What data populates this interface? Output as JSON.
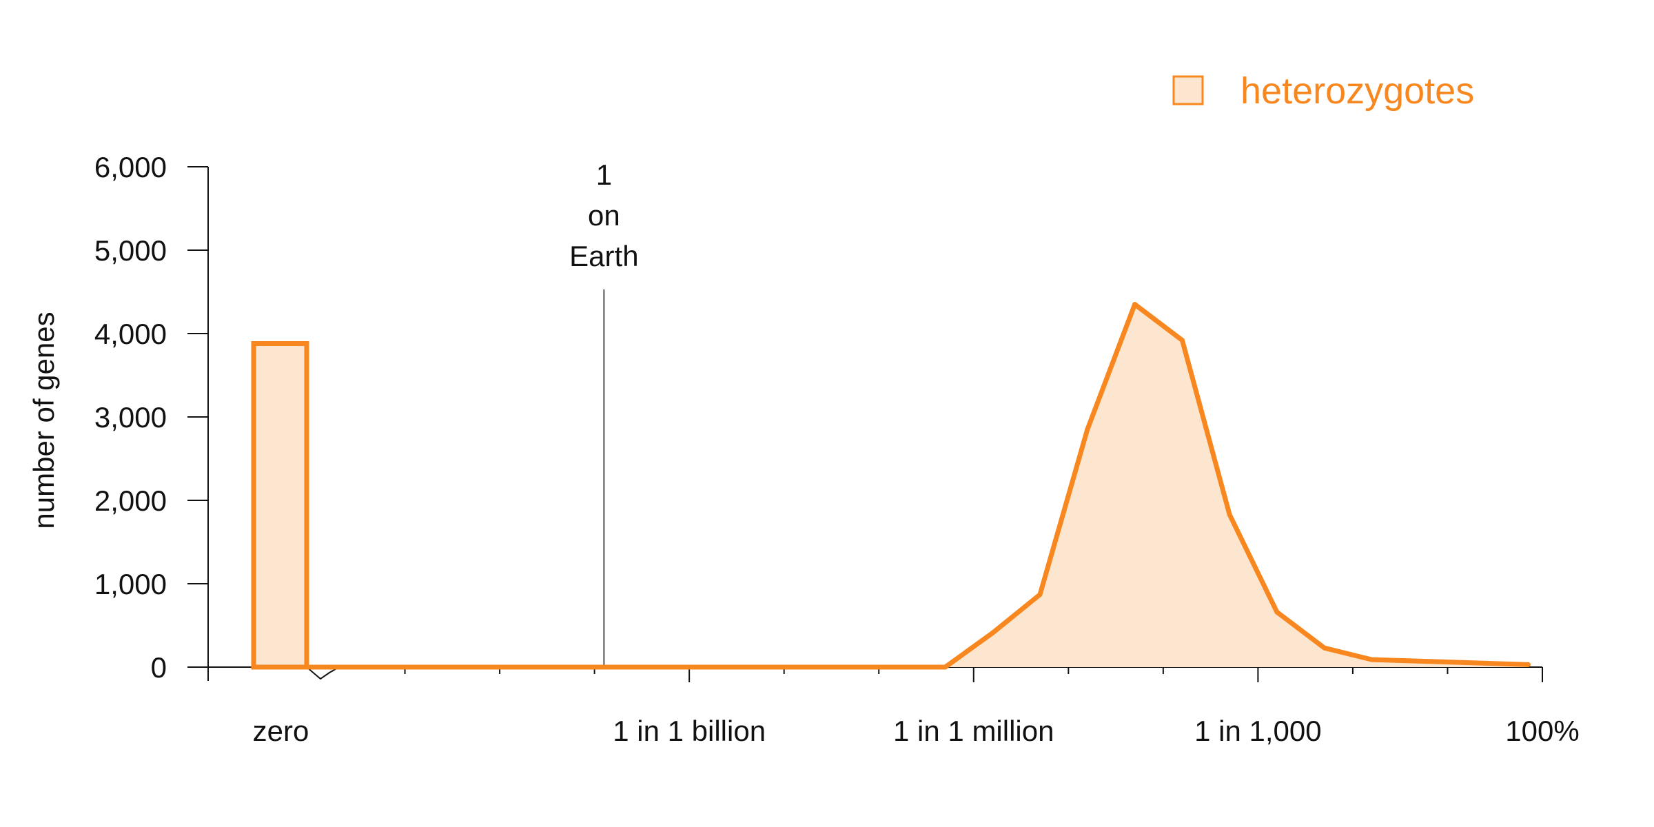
{
  "chart_data": {
    "type": "area",
    "xlabel": "",
    "ylabel": "number of genes",
    "ylim": [
      0,
      6000
    ],
    "y_ticks": [
      {
        "value": 0,
        "label": "0"
      },
      {
        "value": 1000,
        "label": "1,000"
      },
      {
        "value": 2000,
        "label": "2,000"
      },
      {
        "value": 3000,
        "label": "3,000"
      },
      {
        "value": 4000,
        "label": "4,000"
      },
      {
        "value": 5000,
        "label": "5,000"
      },
      {
        "value": 6000,
        "label": "6,000"
      }
    ],
    "x_scale": "log10 of heterozygote frequency, plus a separate 'zero' bin",
    "xlim_log10": [
      -13,
      0
    ],
    "x_ticks": [
      {
        "log10": -9,
        "label": "1 in 1 billion"
      },
      {
        "log10": -6,
        "label": "1 in 1 million"
      },
      {
        "log10": -3,
        "label": "1 in 1,000"
      },
      {
        "log10": 0,
        "label": "100%"
      }
    ],
    "x_minor_ticks_log10": [
      -12,
      -11,
      -10,
      -8,
      -7,
      -5,
      -4,
      -2,
      -1
    ],
    "zero_bin": {
      "label": "zero",
      "value": 3880
    },
    "reference_line": {
      "log10": -9.9,
      "label_lines": [
        "1",
        "on",
        "Earth"
      ]
    },
    "series": [
      {
        "name": "heterozygotes",
        "color": "#F7871E",
        "fill": "#FDE6CF",
        "points": [
          {
            "log10": -13.0,
            "value": 0
          },
          {
            "log10": -6.3,
            "value": 0
          },
          {
            "log10": -5.8,
            "value": 410
          },
          {
            "log10": -5.3,
            "value": 870
          },
          {
            "log10": -4.8,
            "value": 2850
          },
          {
            "log10": -4.3,
            "value": 4350
          },
          {
            "log10": -3.8,
            "value": 3920
          },
          {
            "log10": -3.3,
            "value": 1830
          },
          {
            "log10": -2.8,
            "value": 660
          },
          {
            "log10": -2.3,
            "value": 230
          },
          {
            "log10": -1.8,
            "value": 90
          },
          {
            "log10": -0.15,
            "value": 30
          }
        ]
      }
    ],
    "legend": {
      "position": "top-right",
      "entries": [
        "heterozygotes"
      ]
    }
  }
}
